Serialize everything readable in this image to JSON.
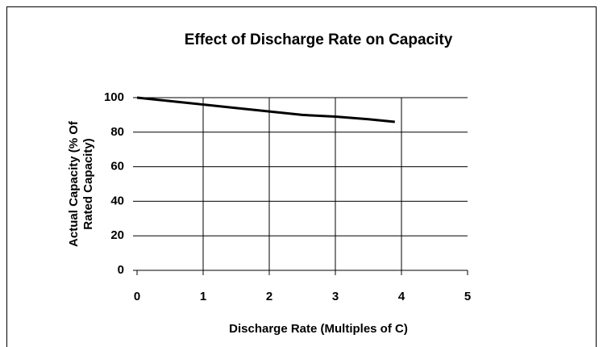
{
  "chart_data": {
    "type": "line",
    "title": "Effect of Discharge Rate on Capacity",
    "x_label": "Discharge Rate (Multiples of C)",
    "y_label": [
      "Actual Capacity (% Of",
      "Rated Capacity)"
    ],
    "x": [
      0,
      0.5,
      1,
      1.5,
      2,
      2.5,
      3,
      3.5,
      3.9
    ],
    "series": [
      {
        "color": "#000000",
        "values": [
          100,
          98,
          96,
          94,
          92,
          90,
          89,
          87.5,
          86
        ]
      }
    ],
    "xlim": [
      0,
      5
    ],
    "xticks": [
      0,
      1,
      2,
      3,
      4,
      5
    ],
    "ylim": [
      0,
      100
    ],
    "yticks": [
      0,
      20,
      40,
      60,
      80,
      100
    ],
    "grid": true
  }
}
